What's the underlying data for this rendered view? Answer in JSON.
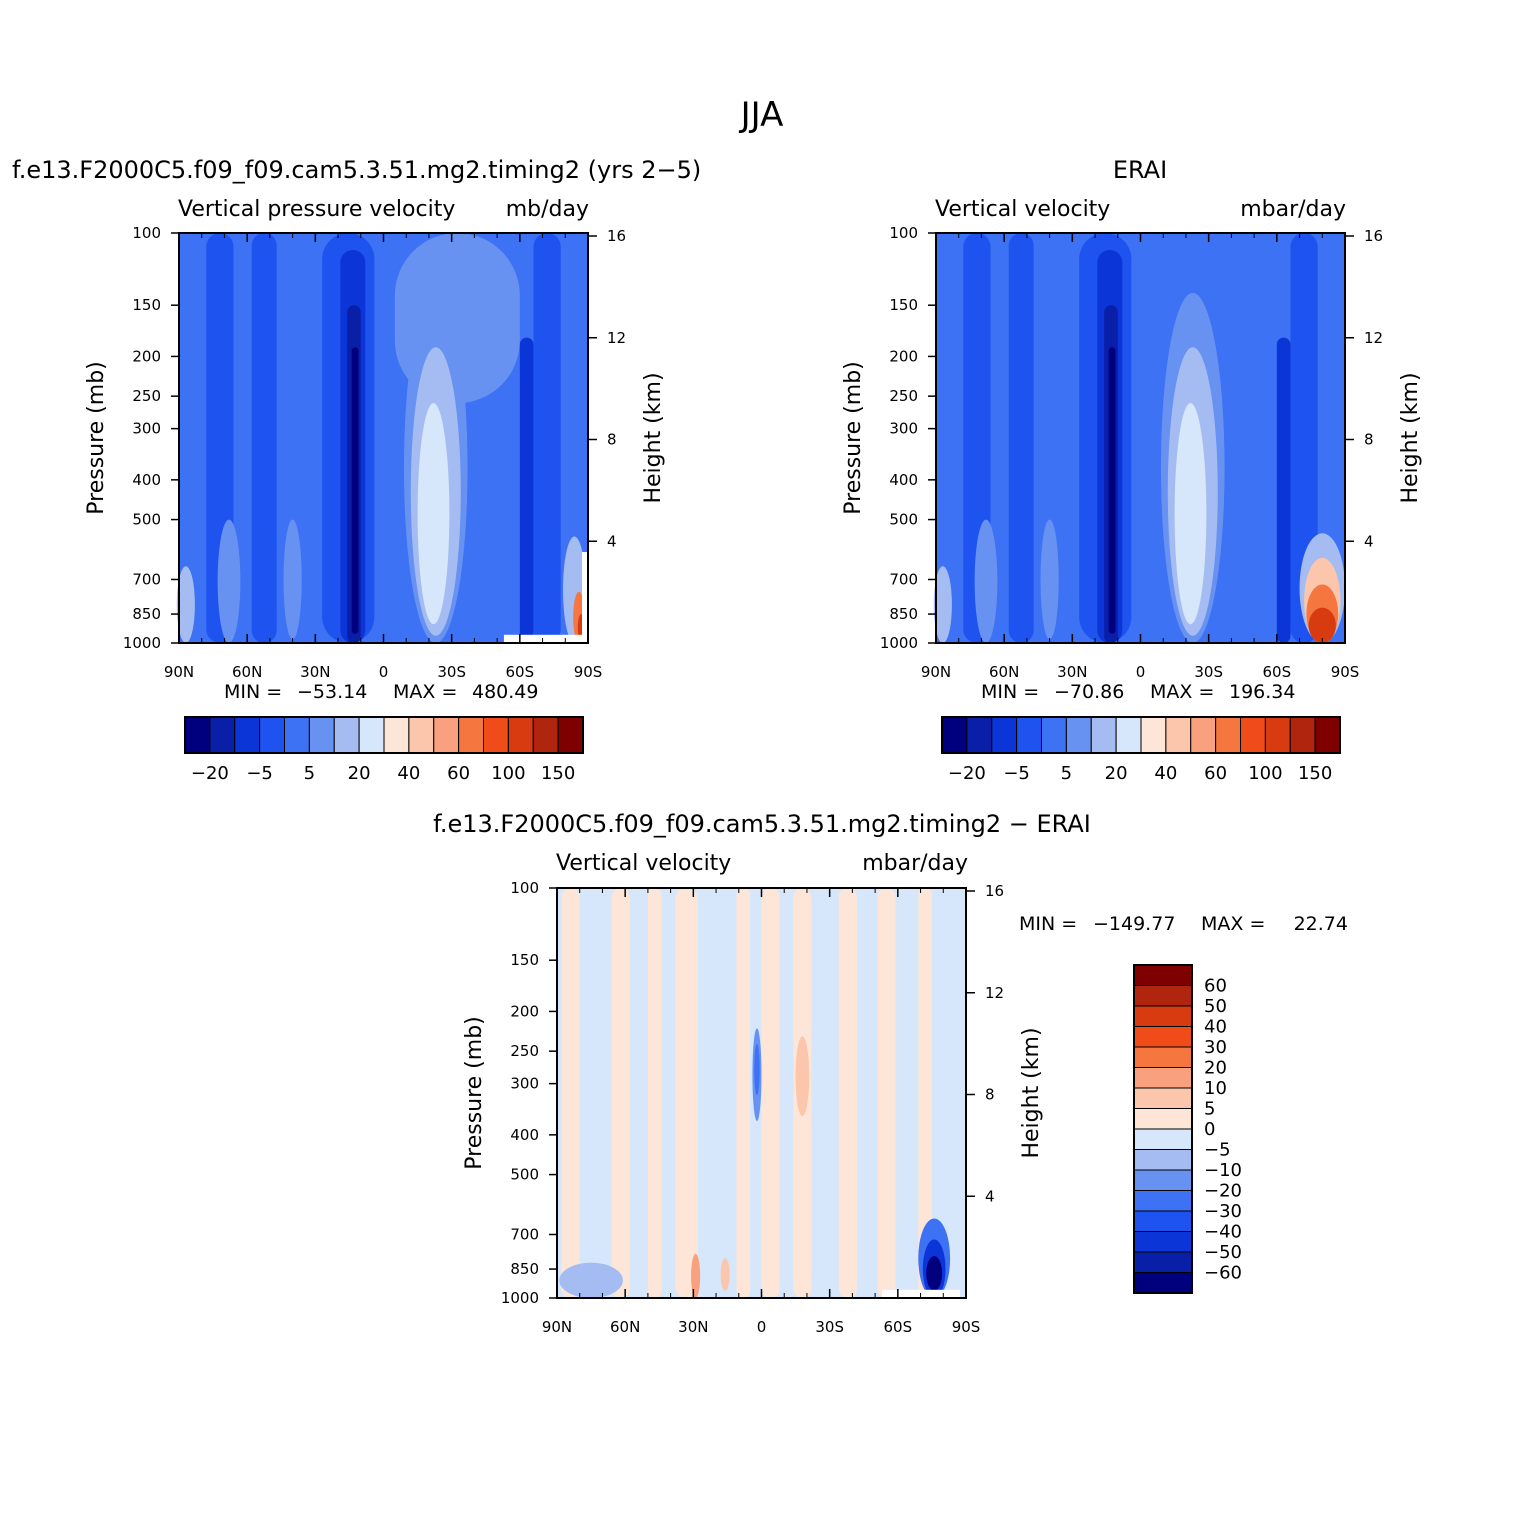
{
  "figure_title": "JJA",
  "colors": {
    "levels_abs": [
      "#00007f",
      "#0A1FA8",
      "#0B35D6",
      "#1F53F0",
      "#3E72F5",
      "#6792F2",
      "#A4BCF2",
      "#D6E6FB",
      "#FDE6D8",
      "#FCC6AC",
      "#F9A07E",
      "#F5763F",
      "#F04C1A",
      "#D93B10",
      "#B0250E",
      "#7F0000"
    ],
    "levels_diff": [
      "#00007f",
      "#0A1FA8",
      "#0B35D6",
      "#1F53F0",
      "#3E72F5",
      "#6792F2",
      "#A4BCF2",
      "#D6E6FB",
      "#FDE6D8",
      "#FCC6AC",
      "#F9A07E",
      "#F5763F",
      "#F04C1A",
      "#D93B10",
      "#B0250E",
      "#7F0000"
    ]
  },
  "chart_data": [
    {
      "type": "heatmap",
      "panel_title": "f.e13.F2000C5.f09_f09.cam5.3.51.mg2.timing2 (yrs 2−5)",
      "left_string": "Vertical pressure velocity",
      "right_string": "mb/day",
      "ylabel": "Pressure (mb)",
      "ylabel_right": "Height (km)",
      "x_ticks": [
        "90N",
        "60N",
        "30N",
        "0",
        "30S",
        "60S",
        "90S"
      ],
      "y_ticks": [
        "100",
        "150",
        "200",
        "250",
        "300",
        "400",
        "500",
        "700",
        "850",
        "1000"
      ],
      "y_ticks_right": [
        "16",
        "12",
        "8",
        "4"
      ],
      "stats_min_label": "MIN =",
      "min": "−53.14",
      "stats_max_label": "MAX =",
      "max": "480.49",
      "colorbar_labels": [
        "−20",
        "−5",
        "5",
        "20",
        "40",
        "60",
        "100",
        "150"
      ],
      "xlim": [
        "90N",
        "90S"
      ],
      "ylim": [
        1000,
        100
      ]
    },
    {
      "type": "heatmap",
      "panel_title": "ERAI",
      "left_string": "Vertical velocity",
      "right_string": "mbar/day",
      "ylabel": "Pressure (mb)",
      "ylabel_right": "Height (km)",
      "x_ticks": [
        "90N",
        "60N",
        "30N",
        "0",
        "30S",
        "60S",
        "90S"
      ],
      "y_ticks": [
        "100",
        "150",
        "200",
        "250",
        "300",
        "400",
        "500",
        "700",
        "850",
        "1000"
      ],
      "y_ticks_right": [
        "16",
        "12",
        "8",
        "4"
      ],
      "stats_min_label": "MIN =",
      "min": "−70.86",
      "stats_max_label": "MAX =",
      "max": "196.34",
      "colorbar_labels": [
        "−20",
        "−5",
        "5",
        "20",
        "40",
        "60",
        "100",
        "150"
      ],
      "xlim": [
        "90N",
        "90S"
      ],
      "ylim": [
        1000,
        100
      ]
    },
    {
      "type": "heatmap",
      "panel_title": "f.e13.F2000C5.f09_f09.cam5.3.51.mg2.timing2 − ERAI",
      "left_string": "Vertical velocity",
      "right_string": "mbar/day",
      "ylabel": "Pressure (mb)",
      "ylabel_right": "Height (km)",
      "x_ticks": [
        "90N",
        "60N",
        "30N",
        "0",
        "30S",
        "60S",
        "90S"
      ],
      "y_ticks": [
        "100",
        "150",
        "200",
        "250",
        "300",
        "400",
        "500",
        "700",
        "850",
        "1000"
      ],
      "y_ticks_right": [
        "16",
        "12",
        "8",
        "4"
      ],
      "stats_min_label": "MIN =",
      "min": "−149.77",
      "stats_max_label": "MAX =",
      "max": "22.74",
      "colorbar_labels": [
        "60",
        "50",
        "40",
        "30",
        "20",
        "10",
        "5",
        "0",
        "−5",
        "−10",
        "−20",
        "−30",
        "−40",
        "−50",
        "−60"
      ],
      "xlim": [
        "90N",
        "90S"
      ],
      "ylim": [
        1000,
        100
      ]
    }
  ]
}
